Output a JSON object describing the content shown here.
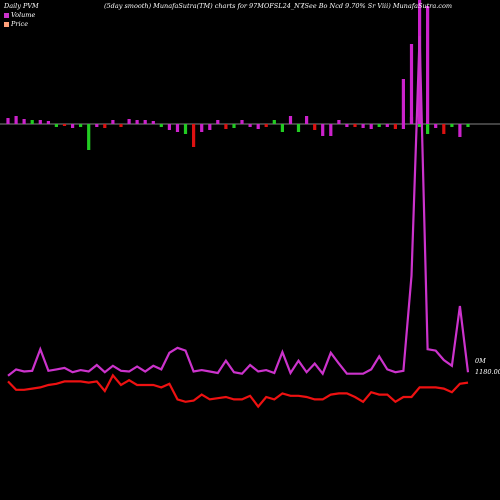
{
  "header": {
    "left": "Daily PVM",
    "mid1": "(5day smooth) MunafaSutra(TM) charts for 97MOFSL24_N7",
    "mid2": "(See Bo   Ncd 9.70% Sr Viii) MunafaSutra.com"
  },
  "legend": {
    "volume": "Volume",
    "price": "Price",
    "volume_color": "#cc33cc",
    "price_color": "#ffa07a"
  },
  "labels": {
    "volume_level": "0M",
    "price_level": "1180.00"
  },
  "colors": {
    "background": "#000000",
    "baseline": "#b0b0b0",
    "up_bar": "#cc22cc",
    "down_bar_green": "#22cc22",
    "down_bar_red": "#dd1111",
    "volume_line": "#cc33cc",
    "price_line": "#ee1111"
  },
  "chart_data": {
    "type": "line",
    "x": [
      1,
      2,
      3,
      4,
      5,
      6,
      7,
      8,
      9,
      10,
      11,
      12,
      13,
      14,
      15,
      16,
      17,
      18,
      19,
      20,
      21,
      22,
      23,
      24,
      25,
      26,
      27,
      28,
      29,
      30,
      31,
      32,
      33,
      34,
      35,
      36,
      37,
      38,
      39,
      40,
      41,
      42,
      43,
      44,
      45,
      46,
      47,
      48,
      49,
      50,
      51,
      52,
      53,
      54,
      55,
      56,
      57,
      58
    ],
    "series": [
      {
        "name": "Volume",
        "values": [
          3,
          12,
          9,
          10,
          40,
          10,
          12,
          14,
          8,
          11,
          9,
          18,
          8,
          17,
          10,
          9,
          16,
          9,
          17,
          12,
          35,
          42,
          38,
          9,
          11,
          9,
          7,
          24,
          8,
          6,
          18,
          9,
          11,
          7,
          36,
          7,
          24,
          8,
          20,
          6,
          35,
          20,
          6,
          6,
          6,
          12,
          30,
          12,
          8,
          10,
          142,
          475,
          40,
          38,
          25,
          17,
          100,
          8
        ],
        "bars": [
          {
            "v": 6,
            "c": "up"
          },
          {
            "v": 8,
            "c": "up"
          },
          {
            "v": 5,
            "c": "up"
          },
          {
            "v": 4,
            "c": "gr"
          },
          {
            "v": 4,
            "c": "up"
          },
          {
            "v": 3,
            "c": "up"
          },
          {
            "v": -3,
            "c": "gr"
          },
          {
            "v": -2,
            "c": "rd"
          },
          {
            "v": -4,
            "c": "up"
          },
          {
            "v": -3,
            "c": "gr"
          },
          {
            "v": -26,
            "c": "gr"
          },
          {
            "v": -3,
            "c": "up"
          },
          {
            "v": -4,
            "c": "rd"
          },
          {
            "v": 4,
            "c": "up"
          },
          {
            "v": -3,
            "c": "rd"
          },
          {
            "v": 5,
            "c": "up"
          },
          {
            "v": 4,
            "c": "up"
          },
          {
            "v": 4,
            "c": "up"
          },
          {
            "v": 3,
            "c": "up"
          },
          {
            "v": -3,
            "c": "gr"
          },
          {
            "v": -6,
            "c": "up"
          },
          {
            "v": -8,
            "c": "up"
          },
          {
            "v": -10,
            "c": "gr"
          },
          {
            "v": -23,
            "c": "rd"
          },
          {
            "v": -8,
            "c": "up"
          },
          {
            "v": -6,
            "c": "up"
          },
          {
            "v": 4,
            "c": "up"
          },
          {
            "v": -5,
            "c": "rd"
          },
          {
            "v": -4,
            "c": "gr"
          },
          {
            "v": 4,
            "c": "up"
          },
          {
            "v": -3,
            "c": "up"
          },
          {
            "v": -5,
            "c": "up"
          },
          {
            "v": -3,
            "c": "rd"
          },
          {
            "v": 4,
            "c": "gr"
          },
          {
            "v": -8,
            "c": "gr"
          },
          {
            "v": 8,
            "c": "up"
          },
          {
            "v": -8,
            "c": "gr"
          },
          {
            "v": 8,
            "c": "up"
          },
          {
            "v": -6,
            "c": "rd"
          },
          {
            "v": -12,
            "c": "up"
          },
          {
            "v": -12,
            "c": "up"
          },
          {
            "v": 4,
            "c": "up"
          },
          {
            "v": -3,
            "c": "up"
          },
          {
            "v": -3,
            "c": "rd"
          },
          {
            "v": -4,
            "c": "up"
          },
          {
            "v": -5,
            "c": "up"
          },
          {
            "v": -3,
            "c": "gr"
          },
          {
            "v": -3,
            "c": "up"
          },
          {
            "v": -5,
            "c": "rd"
          },
          {
            "v": -5,
            "c": "up"
          },
          {
            "v": 7,
            "c": "up"
          },
          {
            "v": -3,
            "c": "gr"
          },
          {
            "v": -10,
            "c": "gr"
          },
          {
            "v": -4,
            "c": "up"
          },
          {
            "v": -10,
            "c": "rd"
          },
          {
            "v": -3,
            "c": "gr"
          },
          {
            "v": -13,
            "c": "up"
          },
          {
            "v": -3,
            "c": "gr"
          }
        ]
      },
      {
        "name": "Price",
        "values": [
          1183,
          1176,
          1176,
          1177,
          1178,
          1180,
          1181,
          1183,
          1183,
          1183,
          1182,
          1183,
          1175,
          1188,
          1180,
          1184,
          1180,
          1180,
          1180,
          1178,
          1181,
          1168,
          1166,
          1167,
          1172,
          1168,
          1169,
          1170,
          1168,
          1168,
          1171,
          1162,
          1170,
          1168,
          1173,
          1171,
          1171,
          1170,
          1168,
          1168,
          1172,
          1173,
          1173,
          1170,
          1166,
          1174,
          1172,
          1172,
          1166,
          1170,
          1170,
          1178,
          1178,
          1178,
          1177,
          1174,
          1181,
          1182
        ]
      }
    ]
  }
}
